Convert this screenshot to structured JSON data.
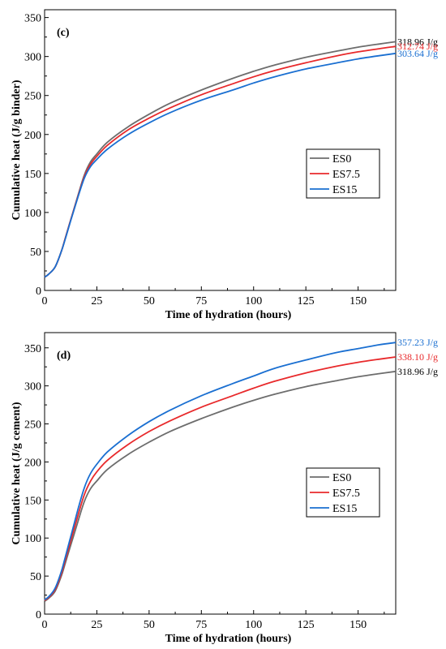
{
  "chart_data": [
    {
      "type": "line",
      "panel_label": "(c)",
      "xlabel": "Time of hydration (hours)",
      "ylabel": "Cumulative heat (J/g binder)",
      "xlim": [
        0,
        168
      ],
      "ylim": [
        0,
        360
      ],
      "xticks": [
        0,
        25,
        50,
        75,
        100,
        125,
        150
      ],
      "yticks": [
        0,
        50,
        100,
        150,
        200,
        250,
        300,
        350
      ],
      "legend_position": "center-right",
      "x": [
        0,
        2,
        5,
        8,
        10,
        13,
        16,
        19,
        22,
        25,
        30,
        40,
        50,
        60,
        75,
        90,
        100,
        110,
        125,
        140,
        150,
        160,
        168
      ],
      "series": [
        {
          "name": "ES0",
          "color": "#6d6d6d",
          "end_label": "318.96 J/g",
          "values": [
            17,
            21,
            30,
            50,
            68,
            95,
            122,
            148,
            165,
            175,
            190,
            210,
            226,
            240,
            257,
            272,
            281,
            289,
            299,
            307,
            312,
            316,
            319
          ]
        },
        {
          "name": "ES7.5",
          "color": "#e8292b",
          "end_label": "312.74 J/g",
          "values": [
            17,
            21,
            30,
            50,
            68,
            95,
            121,
            146,
            162,
            172,
            186,
            206,
            221,
            234,
            251,
            265,
            274,
            282,
            292,
            301,
            306,
            310,
            313
          ]
        },
        {
          "name": "ES15",
          "color": "#1a6fd1",
          "end_label": "303.64 J/g",
          "values": [
            17,
            21,
            30,
            50,
            67,
            94,
            120,
            144,
            159,
            168,
            181,
            200,
            215,
            228,
            244,
            257,
            266,
            274,
            284,
            292,
            297,
            301,
            304
          ]
        }
      ]
    },
    {
      "type": "line",
      "panel_label": "(d)",
      "xlabel": "Time of hydration (hours)",
      "ylabel": "Cumulative heat (J/g cement)",
      "xlim": [
        0,
        168
      ],
      "ylim": [
        0,
        370
      ],
      "xticks": [
        0,
        25,
        50,
        75,
        100,
        125,
        150
      ],
      "yticks": [
        0,
        50,
        100,
        150,
        200,
        250,
        300,
        350
      ],
      "legend_position": "center-right",
      "x": [
        0,
        2,
        5,
        8,
        10,
        13,
        16,
        19,
        22,
        25,
        30,
        40,
        50,
        60,
        75,
        90,
        100,
        110,
        125,
        140,
        150,
        160,
        168
      ],
      "series": [
        {
          "name": "ES0",
          "color": "#6d6d6d",
          "end_label": "318.96 J/g",
          "values": [
            17,
            21,
            30,
            50,
            68,
            95,
            122,
            148,
            165,
            175,
            190,
            210,
            226,
            240,
            257,
            272,
            281,
            289,
            299,
            307,
            312,
            316,
            319
          ]
        },
        {
          "name": "ES7.5",
          "color": "#e8292b",
          "end_label": "338.10 J/g",
          "values": [
            18,
            22,
            32,
            53,
            72,
            101,
            130,
            157,
            175,
            187,
            202,
            223,
            240,
            254,
            272,
            287,
            297,
            306,
            317,
            326,
            331,
            335,
            338
          ]
        },
        {
          "name": "ES15",
          "color": "#1a6fd1",
          "end_label": "357.23 J/g",
          "values": [
            19,
            23,
            34,
            56,
            76,
            107,
            138,
            166,
            185,
            197,
            213,
            235,
            253,
            268,
            287,
            303,
            313,
            323,
            334,
            344,
            349,
            354,
            357
          ]
        }
      ]
    }
  ]
}
